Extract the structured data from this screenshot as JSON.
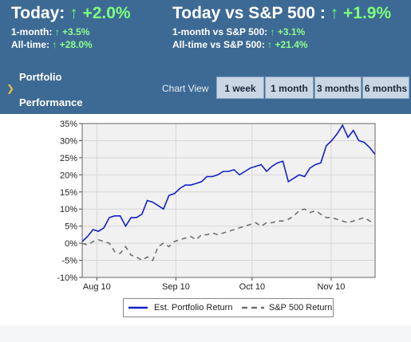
{
  "header": {
    "today": {
      "label": "Today:",
      "value": "+2.0%"
    },
    "month": {
      "label": "1-month:",
      "value": "+3.5%"
    },
    "alltime": {
      "label": "All-time:",
      "value": "+28.0%"
    },
    "vs_today": {
      "label": "Today vs S&P 500 :",
      "value": "+1.9%"
    },
    "vs_month": {
      "label": "1-month vs S&P 500:",
      "value": "+3.1%"
    },
    "vs_alltime": {
      "label": "All-time vs S&P 500:",
      "value": "+21.4%"
    },
    "arrow": "↑"
  },
  "nav": {
    "portfolio": "Portfolio",
    "performance": "Performance",
    "arrow": "❯"
  },
  "chart_view": {
    "label": "Chart View",
    "tabs": [
      "1 week",
      "1 month",
      "3 months",
      "6 months"
    ]
  },
  "chart_data": {
    "type": "line",
    "xlabels": [
      "Aug 10",
      "Sep 10",
      "Oct 10",
      "Nov 10"
    ],
    "yticks": [
      "35%",
      "30%",
      "25%",
      "20%",
      "15%",
      "10%",
      "5%",
      "0%",
      "-5%",
      "-10%"
    ],
    "ylim": [
      -10,
      35
    ],
    "grid": true,
    "legend_position": "bottom",
    "series": [
      {
        "name": "Est. Portfolio Return",
        "color": "#1020c8",
        "style": "solid",
        "values": [
          0.5,
          2,
          4,
          3.5,
          4.5,
          7.5,
          8,
          8,
          5,
          7.5,
          7.5,
          8.5,
          12.5,
          12,
          11,
          10,
          14,
          14.5,
          16,
          17,
          17,
          17.5,
          18,
          19.5,
          19.5,
          20,
          21,
          21,
          21.5,
          20,
          21,
          22,
          22.5,
          23,
          21,
          22.5,
          23.5,
          24,
          18,
          19,
          20,
          19.5,
          22,
          23,
          23.5,
          28.5,
          30,
          32,
          34.5,
          31,
          33,
          30,
          29.5,
          28,
          26
        ]
      },
      {
        "name": "S&P 500 Return",
        "color": "#707070",
        "style": "dashed",
        "values": [
          0,
          -0.5,
          0.5,
          1,
          0.5,
          0,
          -2.5,
          -3,
          -1,
          -3.5,
          -4,
          -5,
          -4,
          -5,
          -1,
          0,
          -1,
          0.5,
          1,
          1.5,
          2,
          1,
          2.5,
          2.5,
          3,
          2.5,
          3,
          3.5,
          4,
          4.5,
          5,
          5.5,
          6,
          5,
          6,
          6,
          6.5,
          6.5,
          7,
          8,
          9.5,
          10,
          9,
          9.5,
          8.5,
          7.5,
          7.5,
          7,
          6.5,
          6,
          6.5,
          7,
          7.5,
          6.5,
          6
        ]
      }
    ]
  }
}
